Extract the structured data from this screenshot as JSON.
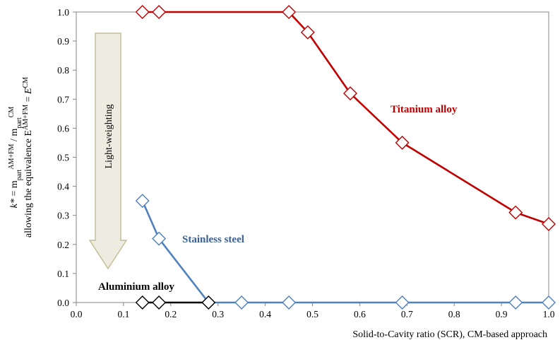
{
  "chart_data": {
    "type": "line",
    "xlabel": "Solid-to-Cavity ratio (SCR), CM-based approach",
    "ylabel": {
      "line1_parts": [
        "k*",
        " = m",
        "part",
        "AM+FM",
        " / m",
        "part",
        "CM"
      ],
      "line2_parts": [
        "allowing the equivalence E",
        "AM+FM",
        " = ",
        "E",
        "CM"
      ]
    },
    "xlim": [
      0.0,
      1.0
    ],
    "ylim": [
      0.0,
      1.0
    ],
    "x_ticks": [
      "0.0",
      "0.1",
      "0.2",
      "0.3",
      "0.4",
      "0.5",
      "0.6",
      "0.7",
      "0.8",
      "0.9",
      "1.0"
    ],
    "y_ticks": [
      "0.0",
      "0.1",
      "0.2",
      "0.3",
      "0.4",
      "0.5",
      "0.6",
      "0.7",
      "0.8",
      "0.9",
      "1.0"
    ],
    "grid": false,
    "arrow_annotation": {
      "text": "Light-weighting",
      "fill_color": "#eeece1",
      "stroke_color": "#c4bd97"
    },
    "series": [
      {
        "name": "Titanium alloy",
        "color": "#c00000",
        "marker": "diamond-open",
        "points": [
          {
            "x": 0.14,
            "y": 1.0
          },
          {
            "x": 0.175,
            "y": 1.0
          },
          {
            "x": 0.45,
            "y": 1.0
          },
          {
            "x": 0.49,
            "y": 0.93
          },
          {
            "x": 0.58,
            "y": 0.72
          },
          {
            "x": 0.69,
            "y": 0.55
          },
          {
            "x": 0.93,
            "y": 0.31
          },
          {
            "x": 1.0,
            "y": 0.27
          }
        ]
      },
      {
        "name": "Stainless steel",
        "color": "#4f81bd",
        "label_color": "#3a5f95",
        "marker": "diamond-open",
        "points": [
          {
            "x": 0.14,
            "y": 0.35
          },
          {
            "x": 0.175,
            "y": 0.22
          },
          {
            "x": 0.28,
            "y": 0.0
          },
          {
            "x": 0.35,
            "y": 0.0
          },
          {
            "x": 0.45,
            "y": 0.0
          },
          {
            "x": 0.69,
            "y": 0.0
          },
          {
            "x": 0.93,
            "y": 0.0
          },
          {
            "x": 1.0,
            "y": 0.0
          }
        ]
      },
      {
        "name": "Aluminium alloy",
        "color": "#000000",
        "marker": "diamond-open",
        "points": [
          {
            "x": 0.14,
            "y": 0.0
          },
          {
            "x": 0.175,
            "y": 0.0
          },
          {
            "x": 0.28,
            "y": 0.0
          }
        ]
      }
    ]
  }
}
